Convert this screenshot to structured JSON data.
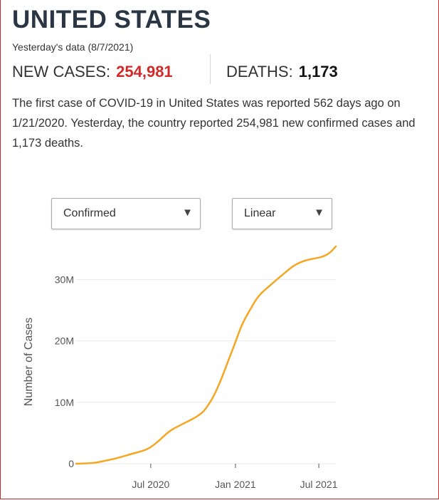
{
  "header": {
    "title": "UNITED STATES",
    "subtitle": "Yesterday's data (8/7/2021)",
    "new_cases_label": "NEW CASES:",
    "new_cases_value": "254,981",
    "deaths_label": "DEATHS:",
    "deaths_value": "1,173"
  },
  "summary": "The first case of COVID-19 in United States was reported 562 days ago on 1/21/2020. Yesterday, the country reported 254,981 new confirmed cases and 1,173 deaths.",
  "controls": {
    "metric_select": "Confirmed",
    "scale_select": "Linear"
  },
  "colors": {
    "title": "#2b3645",
    "new_cases": "#d02a2a",
    "line": "#f5a623",
    "gridline": "#e8e8e8",
    "border": "#c9302c"
  },
  "chart_data": {
    "type": "line",
    "title": "",
    "xlabel": "",
    "ylabel": "Number of Cases",
    "ylim": [
      0,
      35500000
    ],
    "y_ticks": [
      0,
      10000000,
      20000000,
      30000000
    ],
    "y_tick_labels": [
      "0",
      "10M",
      "20M",
      "30M"
    ],
    "x_range": [
      "2020-01-21",
      "2021-08-07"
    ],
    "x_ticks": [
      "2020-07-01",
      "2021-01-01",
      "2021-07-01"
    ],
    "x_tick_labels": [
      "Jul 2020",
      "Jan 2021",
      "Jul 2021"
    ],
    "grid": true,
    "series": [
      {
        "name": "",
        "x": [
          "2020-01-21",
          "2020-03-01",
          "2020-03-25",
          "2020-04-20",
          "2020-05-20",
          "2020-06-15",
          "2020-07-01",
          "2020-07-20",
          "2020-08-10",
          "2020-09-01",
          "2020-10-01",
          "2020-10-20",
          "2020-11-01",
          "2020-11-15",
          "2020-12-01",
          "2020-12-15",
          "2021-01-01",
          "2021-01-15",
          "2021-02-01",
          "2021-02-20",
          "2021-03-15",
          "2021-04-01",
          "2021-04-20",
          "2021-05-10",
          "2021-06-01",
          "2021-06-20",
          "2021-07-10",
          "2021-07-25",
          "2021-08-07"
        ],
        "values": [
          0,
          100000,
          500000,
          900000,
          1600000,
          2100000,
          2650000,
          3800000,
          5300000,
          6200000,
          7300000,
          8200000,
          9300000,
          11000000,
          13700000,
          16500000,
          19800000,
          22700000,
          25000000,
          27400000,
          28900000,
          30000000,
          31200000,
          32400000,
          33100000,
          33400000,
          33700000,
          34300000,
          35400000
        ]
      }
    ]
  }
}
